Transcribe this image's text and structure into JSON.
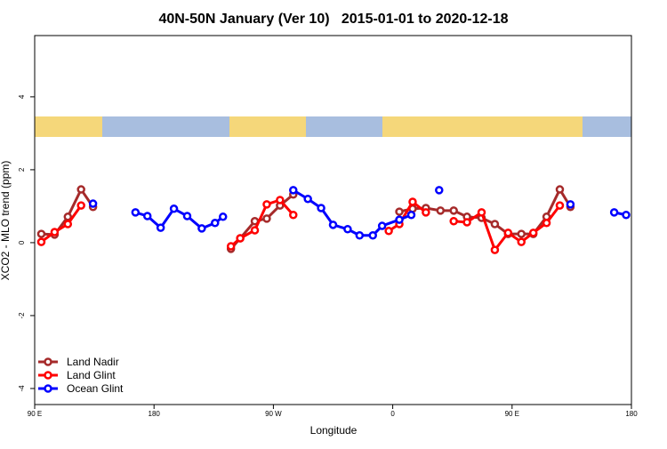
{
  "chart_data": {
    "type": "line",
    "title": "40N-50N January (Ver 10)   2015-01-01 to 2020-12-18",
    "x_label": "Longitude",
    "y_label": "XCO2 - MLO trend (ppm)",
    "xlim": [
      90,
      540
    ],
    "ylim": [
      -4.44,
      5.68
    ],
    "xticks": [
      {
        "value": 90,
        "label": "90 E"
      },
      {
        "value": 180,
        "label": "180"
      },
      {
        "value": 270,
        "label": "90 W"
      },
      {
        "value": 360,
        "label": "0"
      },
      {
        "value": 450,
        "label": "90 E"
      },
      {
        "value": 540,
        "label": "180"
      }
    ],
    "yticks": [
      -4,
      -2,
      0,
      2,
      4
    ],
    "legend": "bottom-left",
    "series": [
      {
        "name": "Land Nadir",
        "color": "#a52a2a",
        "x": [
          95,
          105,
          115,
          125,
          134,
          null,
          238,
          245,
          256,
          265,
          275,
          285,
          null,
          365,
          375,
          385,
          396,
          406,
          416,
          427,
          437,
          447,
          457,
          466,
          476,
          486,
          494
        ],
        "values": [
          0.24,
          0.22,
          0.71,
          1.46,
          0.98,
          null,
          -0.17,
          0.12,
          0.59,
          0.66,
          1.02,
          1.32,
          null,
          0.85,
          0.93,
          0.95,
          0.88,
          0.88,
          0.71,
          0.68,
          0.51,
          0.24,
          0.24,
          0.24,
          0.71,
          1.46,
          0.98
        ]
      },
      {
        "name": "Land Glint",
        "color": "#ff0000",
        "x": [
          95,
          105,
          115,
          125,
          null,
          238,
          245,
          256,
          265,
          275,
          285,
          null,
          357,
          365,
          375,
          385,
          null,
          406,
          416,
          427,
          437,
          447,
          457,
          466,
          476,
          486
        ],
        "values": [
          0.02,
          0.29,
          0.51,
          1.02,
          null,
          -0.1,
          0.12,
          0.34,
          1.05,
          1.17,
          0.76,
          null,
          0.32,
          0.51,
          1.12,
          0.83,
          null,
          0.59,
          0.56,
          0.83,
          -0.2,
          0.27,
          0.02,
          0.27,
          0.54,
          1.02
        ]
      },
      {
        "name": "Ocean Glint",
        "color": "#0000ff",
        "x": [
          134,
          null,
          166,
          175,
          185,
          195,
          205,
          216,
          226,
          232,
          null,
          285,
          296,
          306,
          315,
          326,
          335,
          345,
          352,
          365,
          374,
          null,
          395,
          null,
          494,
          null,
          527,
          536
        ],
        "values": [
          1.07,
          null,
          0.83,
          0.73,
          0.41,
          0.93,
          0.73,
          0.39,
          0.54,
          0.71,
          null,
          1.44,
          1.2,
          0.95,
          0.49,
          0.37,
          0.2,
          0.2,
          0.46,
          0.63,
          0.76,
          null,
          1.44,
          null,
          1.05,
          null,
          0.83,
          0.76
        ]
      }
    ]
  }
}
